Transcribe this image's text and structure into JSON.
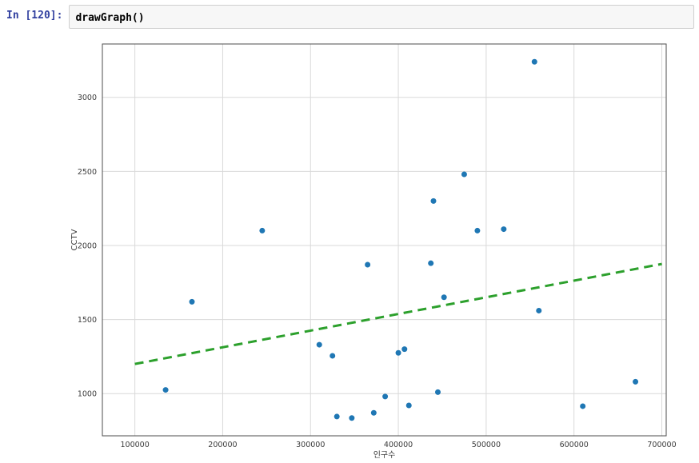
{
  "notebook": {
    "prompt": "In [120]:",
    "code": "drawGraph()",
    "prompt_color": "#303F9F"
  },
  "chart_data": {
    "type": "scatter",
    "title": "",
    "xlabel": "인구수",
    "ylabel": "CCTV",
    "xlim": [
      63000,
      705000
    ],
    "ylim": [
      715,
      3360
    ],
    "xticks": [
      100000,
      200000,
      300000,
      400000,
      500000,
      600000,
      700000
    ],
    "yticks": [
      1000,
      1500,
      2000,
      2500,
      3000
    ],
    "grid": true,
    "legend": "none",
    "colors": {
      "point": "#1f77b4",
      "trend": "#2ca02c",
      "grid": "#d9d9d9",
      "frame": "#4d4d4d",
      "background": "#ffffff"
    },
    "points": [
      [
        135000,
        1025
      ],
      [
        165000,
        1620
      ],
      [
        245000,
        2100
      ],
      [
        310000,
        1330
      ],
      [
        325000,
        1255
      ],
      [
        330000,
        845
      ],
      [
        347000,
        835
      ],
      [
        365000,
        1870
      ],
      [
        372000,
        870
      ],
      [
        385000,
        980
      ],
      [
        400000,
        1275
      ],
      [
        407000,
        1300
      ],
      [
        412000,
        920
      ],
      [
        437000,
        1880
      ],
      [
        440000,
        2300
      ],
      [
        445000,
        1010
      ],
      [
        452000,
        1650
      ],
      [
        475000,
        2480
      ],
      [
        490000,
        2100
      ],
      [
        520000,
        2110
      ],
      [
        555000,
        3240
      ],
      [
        560000,
        1560
      ],
      [
        610000,
        915
      ],
      [
        670000,
        1080
      ]
    ],
    "trendline": {
      "style": "dashed",
      "x": [
        100000,
        700000
      ],
      "y": [
        1200,
        1875
      ],
      "line_width": 3
    }
  }
}
